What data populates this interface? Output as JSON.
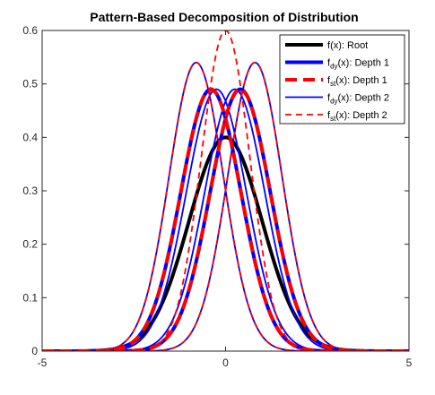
{
  "chart_data": {
    "type": "line",
    "title": "Pattern-Based Decomposition of Distribution",
    "xlabel": "",
    "ylabel": "",
    "xlim": [
      -5,
      5
    ],
    "ylim": [
      0,
      0.6
    ],
    "x_ticks": [
      -5,
      0,
      5
    ],
    "y_ticks": [
      0,
      0.1,
      0.2,
      0.3,
      0.4,
      0.5,
      0.6
    ],
    "x_tick_labels": [
      "-5",
      "0",
      "5"
    ],
    "y_tick_labels": [
      "0",
      "0.1",
      "0.2",
      "0.3",
      "0.4",
      "0.5",
      "0.6"
    ],
    "grid": false,
    "legend_placement": "top-right",
    "legend": [
      {
        "main": "f",
        "sub": "",
        "rest": "(x): Root",
        "color": "#000000",
        "style": "solid",
        "weight": "thick"
      },
      {
        "main": "f",
        "sub": "dy",
        "rest": "(x): Depth 1",
        "color": "#0000ff",
        "style": "solid",
        "weight": "thick"
      },
      {
        "main": "f",
        "sub": "st",
        "rest": "(x): Depth 1",
        "color": "#ff0000",
        "style": "dashed",
        "weight": "thick"
      },
      {
        "main": "f",
        "sub": "dy",
        "rest": "(x): Depth 2",
        "color": "#0000ff",
        "style": "solid",
        "weight": "thin"
      },
      {
        "main": "f",
        "sub": "st",
        "rest": "(x): Depth 2",
        "color": "#ff0000",
        "style": "dashed",
        "weight": "thin"
      }
    ],
    "series": [
      {
        "legend_index": 0,
        "mean": 0,
        "sigma": 1.0,
        "peak": 0.4
      },
      {
        "legend_index": 1,
        "mean": -0.4,
        "sigma": 0.82,
        "peak": 0.49
      },
      {
        "legend_index": 1,
        "mean": 0.4,
        "sigma": 0.82,
        "peak": 0.49
      },
      {
        "legend_index": 2,
        "mean": -0.4,
        "sigma": 0.82,
        "peak": 0.49
      },
      {
        "legend_index": 2,
        "mean": 0.4,
        "sigma": 0.82,
        "peak": 0.49
      },
      {
        "legend_index": 3,
        "mean": -0.8,
        "sigma": 0.74,
        "peak": 0.54
      },
      {
        "legend_index": 3,
        "mean": -0.25,
        "sigma": 0.82,
        "peak": 0.49
      },
      {
        "legend_index": 3,
        "mean": 0.25,
        "sigma": 0.82,
        "peak": 0.49
      },
      {
        "legend_index": 3,
        "mean": 0.8,
        "sigma": 0.74,
        "peak": 0.54
      },
      {
        "legend_index": 4,
        "mean": -0.8,
        "sigma": 0.74,
        "peak": 0.54
      },
      {
        "legend_index": 4,
        "mean": 0,
        "sigma": 0.66,
        "peak": 0.6
      },
      {
        "legend_index": 4,
        "mean": 0.8,
        "sigma": 0.74,
        "peak": 0.54
      }
    ]
  }
}
